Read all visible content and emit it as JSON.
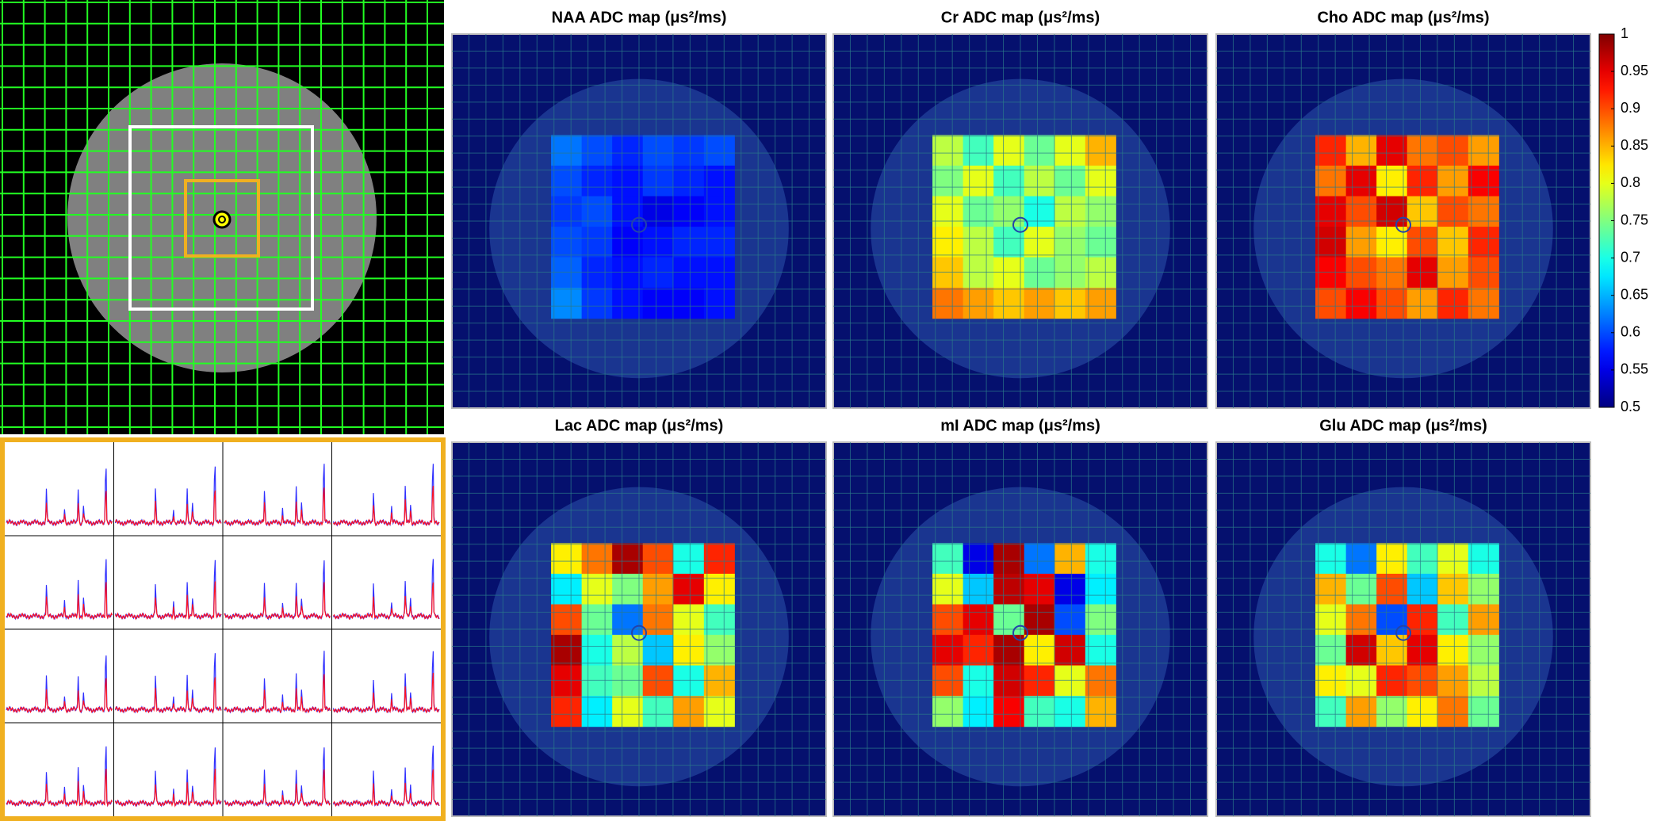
{
  "maps": [
    {
      "title": "NAA ADC map (μs²/ms)",
      "values": [
        [
          0.62,
          0.6,
          0.58,
          0.6,
          0.59,
          0.6
        ],
        [
          0.6,
          0.58,
          0.57,
          0.59,
          0.58,
          0.57
        ],
        [
          0.59,
          0.6,
          0.57,
          0.55,
          0.56,
          0.57
        ],
        [
          0.6,
          0.59,
          0.56,
          0.57,
          0.58,
          0.58
        ],
        [
          0.61,
          0.58,
          0.57,
          0.58,
          0.57,
          0.57
        ],
        [
          0.63,
          0.59,
          0.57,
          0.56,
          0.56,
          0.57
        ]
      ]
    },
    {
      "title": "Cr ADC map (μs²/ms)",
      "values": [
        [
          0.78,
          0.72,
          0.8,
          0.74,
          0.8,
          0.85
        ],
        [
          0.75,
          0.8,
          0.72,
          0.78,
          0.74,
          0.8
        ],
        [
          0.8,
          0.74,
          0.76,
          0.7,
          0.78,
          0.76
        ],
        [
          0.82,
          0.78,
          0.72,
          0.8,
          0.76,
          0.74
        ],
        [
          0.84,
          0.78,
          0.8,
          0.74,
          0.76,
          0.78
        ],
        [
          0.88,
          0.86,
          0.84,
          0.86,
          0.84,
          0.86
        ]
      ]
    },
    {
      "title": "Cho ADC map (μs²/ms)",
      "values": [
        [
          0.92,
          0.85,
          0.95,
          0.88,
          0.9,
          0.86
        ],
        [
          0.88,
          0.95,
          0.82,
          0.92,
          0.86,
          0.94
        ],
        [
          0.95,
          0.9,
          0.96,
          0.84,
          0.9,
          0.88
        ],
        [
          0.96,
          0.86,
          0.82,
          0.9,
          0.84,
          0.92
        ],
        [
          0.94,
          0.9,
          0.88,
          0.95,
          0.86,
          0.9
        ],
        [
          0.9,
          0.94,
          0.9,
          0.86,
          0.92,
          0.88
        ]
      ]
    },
    {
      "title": "Lac ADC map (μs²/ms)",
      "values": [
        [
          0.82,
          0.88,
          0.98,
          0.9,
          0.7,
          0.92
        ],
        [
          0.68,
          0.8,
          0.75,
          0.86,
          0.95,
          0.82
        ],
        [
          0.9,
          0.74,
          0.62,
          0.88,
          0.8,
          0.72
        ],
        [
          0.98,
          0.7,
          0.78,
          0.66,
          0.82,
          0.76
        ],
        [
          0.95,
          0.72,
          0.74,
          0.9,
          0.7,
          0.85
        ],
        [
          0.92,
          0.68,
          0.8,
          0.72,
          0.86,
          0.8
        ]
      ]
    },
    {
      "title": "mI ADC map (μs²/ms)",
      "values": [
        [
          0.72,
          0.55,
          0.98,
          0.62,
          0.85,
          0.7
        ],
        [
          0.8,
          0.66,
          0.97,
          0.95,
          0.55,
          0.68
        ],
        [
          0.9,
          0.95,
          0.74,
          0.98,
          0.6,
          0.75
        ],
        [
          0.95,
          0.92,
          0.98,
          0.82,
          0.96,
          0.7
        ],
        [
          0.9,
          0.7,
          0.96,
          0.92,
          0.8,
          0.88
        ],
        [
          0.76,
          0.68,
          0.94,
          0.72,
          0.7,
          0.85
        ]
      ]
    },
    {
      "title": "Glu ADC map (μs²/ms)",
      "values": [
        [
          0.7,
          0.62,
          0.82,
          0.72,
          0.8,
          0.7
        ],
        [
          0.85,
          0.74,
          0.9,
          0.66,
          0.84,
          0.76
        ],
        [
          0.8,
          0.88,
          0.6,
          0.92,
          0.72,
          0.86
        ],
        [
          0.74,
          0.96,
          0.84,
          0.95,
          0.82,
          0.76
        ],
        [
          0.82,
          0.8,
          0.92,
          0.9,
          0.86,
          0.78
        ],
        [
          0.72,
          0.86,
          0.76,
          0.82,
          0.88,
          0.74
        ]
      ]
    }
  ],
  "colorbar": {
    "clim": [
      0.5,
      1
    ],
    "ticks": [
      1,
      0.95,
      0.9,
      0.85,
      0.8,
      0.75,
      0.7,
      0.65,
      0.6,
      0.55,
      0.5
    ],
    "colormap": "jet"
  }
}
